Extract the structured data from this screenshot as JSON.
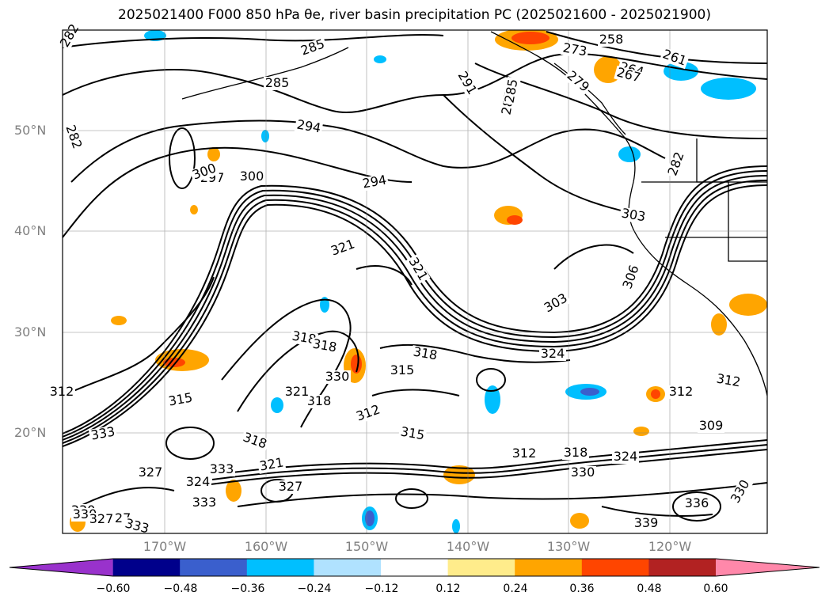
{
  "title": "2025021400 F000 850 hPa θe, river basin precipitation PC (2025021600 - 2025021900)",
  "map": {
    "lat_labels": [
      "50°N",
      "40°N",
      "30°N",
      "20°N"
    ],
    "lon_labels": [
      "170°W",
      "160°W",
      "150°W",
      "140°W",
      "130°W",
      "120°W"
    ],
    "contour_labels": [
      "282",
      "285",
      "285",
      "282",
      "294",
      "297",
      "300",
      "300",
      "294",
      "285",
      "291",
      "285",
      "273",
      "258",
      "261",
      "264",
      "267",
      "279",
      "282",
      "303",
      "306",
      "303",
      "321",
      "318",
      "318",
      "315",
      "321",
      "324",
      "318",
      "312",
      "312",
      "315",
      "312",
      "318",
      "324",
      "330",
      "336",
      "339",
      "309",
      "312",
      "330",
      "315",
      "321",
      "333",
      "318",
      "321",
      "327",
      "333",
      "327",
      "324",
      "327",
      "330",
      "333",
      "330",
      "333",
      "312",
      "318",
      "330",
      "327"
    ]
  },
  "colorbar": {
    "ticks": [
      "−0.60",
      "−0.48",
      "−0.36",
      "−0.24",
      "−0.12",
      "0.12",
      "0.24",
      "0.36",
      "0.48",
      "0.60"
    ],
    "colors": [
      "#9932cc",
      "#00008b",
      "#3a5fcd",
      "#00bfff",
      "#b0e2ff",
      "#ffffff",
      "#ffec8b",
      "#ffa500",
      "#ff4500",
      "#b22222",
      "#ff88aa"
    ]
  }
}
